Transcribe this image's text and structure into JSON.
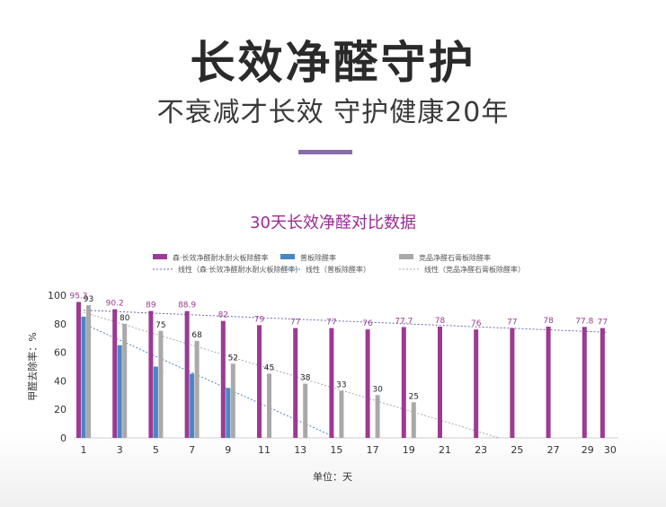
{
  "headline": "长效净醛守护",
  "subheadline": "不衰减才长效 守护健康20年",
  "colors": {
    "series_purple": "#9c3a94",
    "series_blue": "#4a86c6",
    "series_gray": "#a9a9a9",
    "title_pink": "#9b2c93",
    "accent": "#8a6cab"
  },
  "chart_data": {
    "type": "bar",
    "title": "30天长效净醛对比数据",
    "xlabel": "单位：天",
    "ylabel": "甲醛去除率：%",
    "ylim": [
      0,
      100
    ],
    "yticks": [
      0,
      20,
      40,
      60,
      80,
      100
    ],
    "categories": [
      "1",
      "3",
      "5",
      "7",
      "9",
      "11",
      "13",
      "15",
      "17",
      "19",
      "21",
      "23",
      "25",
      "27",
      "29",
      "30"
    ],
    "grid": false,
    "legend_position": "top",
    "series": [
      {
        "name": "森·长效净醛耐水耐火板除醛率",
        "color": "#9c3a94",
        "values": [
          95.3,
          90.2,
          89,
          88.9,
          82,
          79,
          77,
          77,
          76,
          77.7,
          78,
          76,
          77,
          78,
          77.8,
          77
        ]
      },
      {
        "name": "普板除醛率",
        "color": "#4a86c6",
        "values": [
          85,
          65,
          50,
          45,
          35,
          null,
          null,
          null,
          null,
          null,
          null,
          null,
          null,
          null,
          null,
          null
        ]
      },
      {
        "name": "竞品净醛石膏板除醛率",
        "color": "#a9a9a9",
        "values": [
          93,
          80,
          75,
          68,
          52,
          45,
          38,
          33,
          30,
          25,
          null,
          null,
          null,
          null,
          null,
          null
        ]
      }
    ],
    "trendlines": [
      {
        "name": "线性（森·长效净醛耐水耐火板除醛率）",
        "color": "#6a6ab8",
        "from": [
          1,
          89.5
        ],
        "to": [
          30,
          74
        ]
      },
      {
        "name": "线性（普板除醛率）",
        "color": "#4a86c6",
        "from": [
          1,
          80
        ],
        "to": [
          15,
          0
        ]
      },
      {
        "name": "线性（竞品净醛石膏板除醛率）",
        "color": "#a9a9a9",
        "from": [
          1,
          88
        ],
        "to": [
          24,
          0
        ]
      }
    ]
  }
}
